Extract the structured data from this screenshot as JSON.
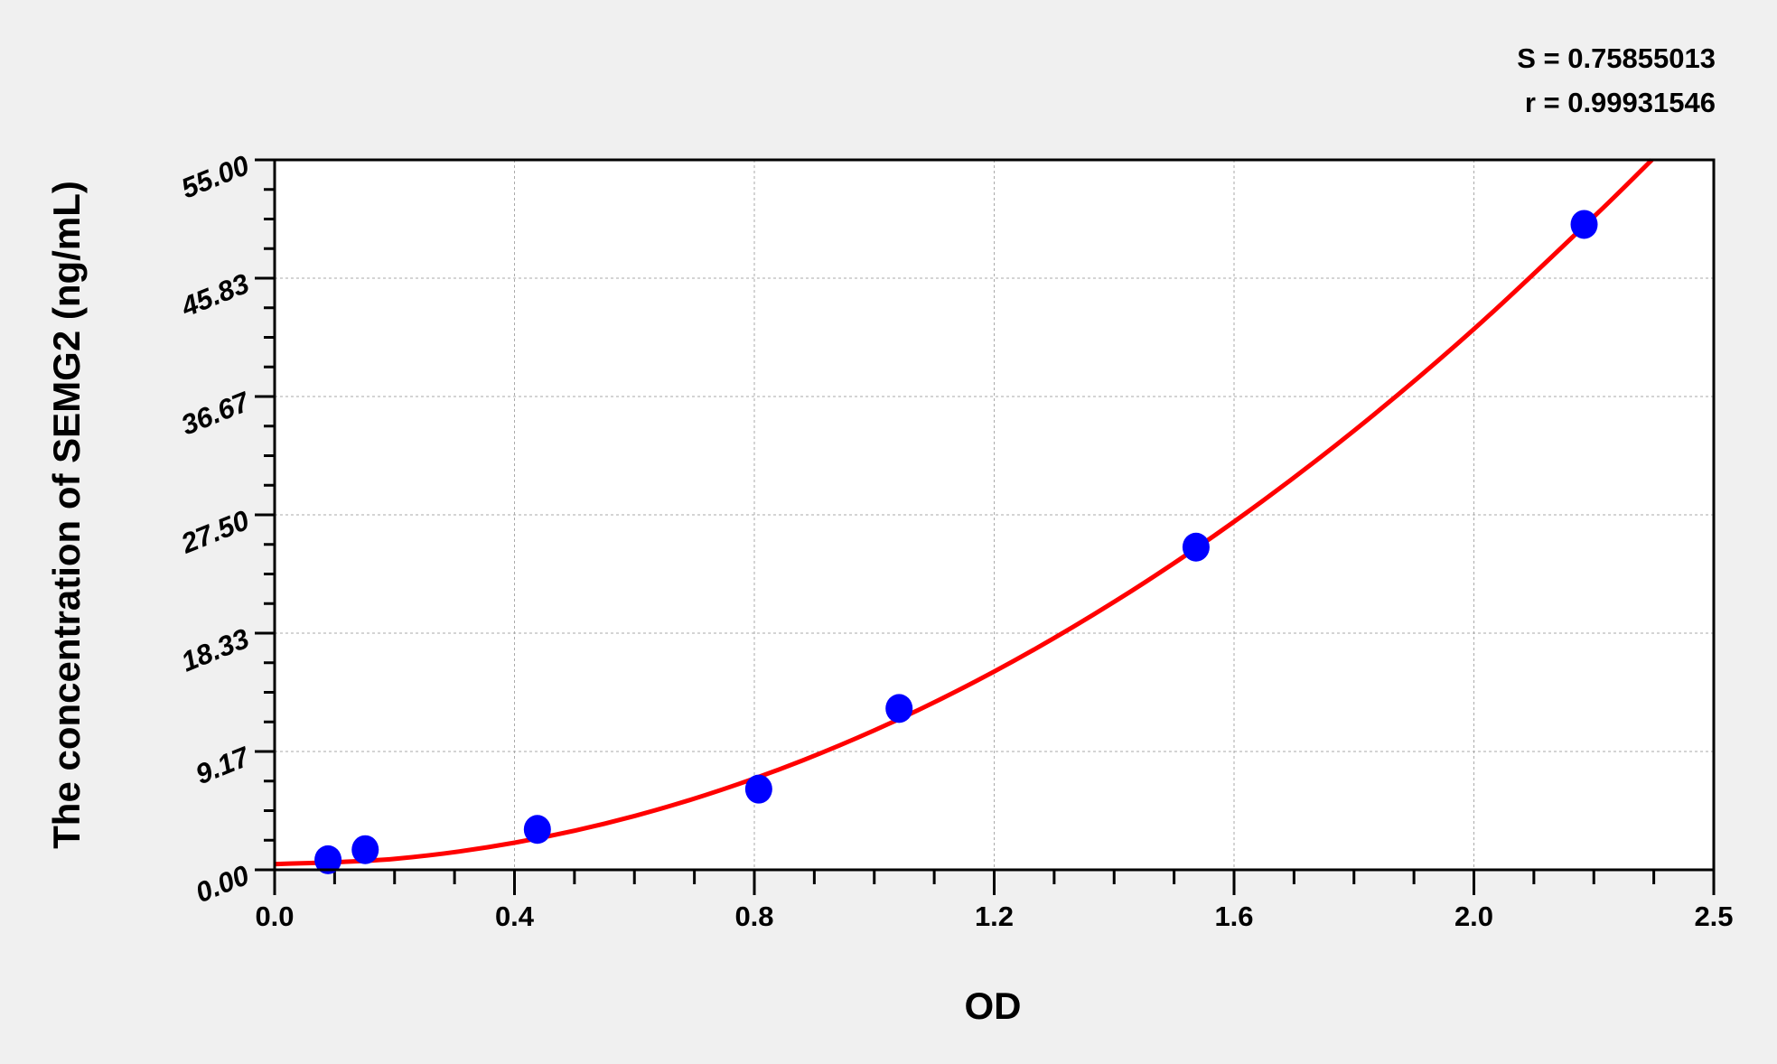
{
  "chart_data": {
    "type": "scatter",
    "title": "",
    "xlabel": "OD",
    "ylabel": "The concentration of SEMG2 (ng/mL)",
    "annotations": [
      "S = 0.75855013",
      "r = 0.99931546"
    ],
    "x_ticks": [
      "0.0",
      "0.4",
      "0.8",
      "1.2",
      "1.6",
      "2.0",
      "2.5"
    ],
    "y_ticks": [
      "0.00",
      "9.17",
      "18.33",
      "27.50",
      "36.67",
      "45.83",
      "55.00"
    ],
    "ylim": [
      0,
      55
    ],
    "grid": true,
    "colors": {
      "points": "#0000ff",
      "curve": "#ff0000",
      "background": "#f0f0f0",
      "plot": "#ffffff"
    },
    "points": {
      "x": [
        0.089,
        0.151,
        0.438,
        0.807,
        1.041,
        1.536,
        2.183
      ],
      "y": [
        0.78,
        1.56,
        3.13,
        6.25,
        12.5,
        25,
        50
      ]
    },
    "fit_curve": {
      "x": [
        0,
        0.2,
        0.4,
        0.6,
        0.8,
        1.0,
        1.2,
        1.4,
        1.6,
        1.8,
        2.0,
        2.2,
        2.296
      ],
      "y": [
        0.44,
        0.85,
        2.1,
        4.17,
        7.08,
        10.81,
        15.37,
        20.77,
        26.99,
        34.04,
        41.92,
        50.63,
        55.0
      ]
    }
  }
}
